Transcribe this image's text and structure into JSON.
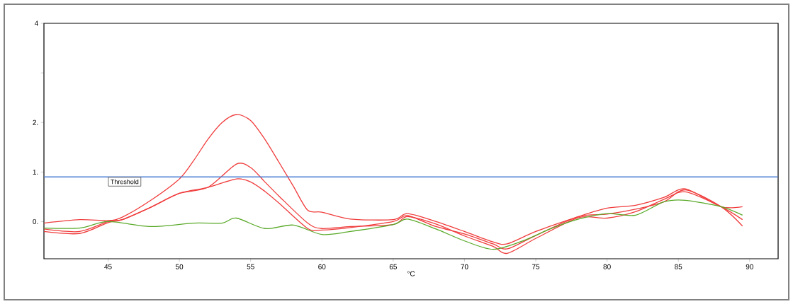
{
  "chart_data": {
    "type": "line",
    "xlabel": "°C",
    "xlim": [
      40.5,
      92
    ],
    "ylim": [
      -0.75,
      4
    ],
    "xticks": [
      45,
      50,
      55,
      60,
      65,
      70,
      75,
      80,
      85,
      90
    ],
    "yticks": [
      {
        "value": 0,
        "label": "0."
      },
      {
        "value": 1,
        "label": "1."
      },
      {
        "value": 2,
        "label": "2."
      },
      {
        "value": 3,
        "label": null
      },
      {
        "value": 4,
        "label": "4"
      }
    ],
    "grid": false,
    "marker": "none",
    "line_style": "solid",
    "ref_lines": [
      {
        "axis": "y",
        "value": 0.9,
        "label": "Threshold",
        "color": "#4a7fd4"
      }
    ],
    "series": [
      {
        "color": "#f03c3c",
        "x": [
          40.5,
          43,
          45,
          46,
          48,
          50,
          51,
          52,
          53,
          54,
          55,
          56,
          57,
          58,
          59,
          60,
          62,
          65,
          66,
          68,
          70,
          72,
          73,
          75,
          78,
          80,
          82,
          84,
          85.5,
          88,
          89.5
        ],
        "values": [
          -0.03,
          0.04,
          0.02,
          0.09,
          0.43,
          0.86,
          1.23,
          1.66,
          2.0,
          2.16,
          2.04,
          1.66,
          1.19,
          0.71,
          0.23,
          0.19,
          0.05,
          0.04,
          0.16,
          0.0,
          -0.2,
          -0.41,
          -0.45,
          -0.2,
          0.1,
          0.27,
          0.33,
          0.49,
          0.66,
          0.3,
          0.3
        ]
      },
      {
        "color": "#f03c3c",
        "x": [
          40.5,
          43,
          45,
          46,
          48,
          50,
          52,
          54,
          55,
          56,
          57,
          59,
          60,
          62,
          65,
          66,
          68,
          70,
          72,
          73,
          75,
          78,
          80,
          82,
          84,
          85.5,
          88,
          89.5
        ],
        "values": [
          -0.2,
          -0.24,
          -0.02,
          0.04,
          0.29,
          0.57,
          0.69,
          1.16,
          1.09,
          0.8,
          0.51,
          -0.03,
          -0.14,
          -0.1,
          -0.06,
          0.1,
          -0.05,
          -0.29,
          -0.5,
          -0.64,
          -0.34,
          0.08,
          0.07,
          0.2,
          0.45,
          0.6,
          0.3,
          0.04
        ]
      },
      {
        "color": "#f03c3c",
        "x": [
          40.5,
          43,
          45,
          46,
          48,
          50,
          52,
          54,
          55,
          56,
          57,
          59,
          60,
          62,
          65,
          66,
          68,
          70,
          72,
          73,
          75,
          78,
          80,
          82,
          84,
          85.5,
          88,
          89.5
        ],
        "values": [
          -0.15,
          -0.2,
          0.0,
          0.04,
          0.29,
          0.57,
          0.69,
          0.86,
          0.8,
          0.61,
          0.37,
          -0.14,
          -0.17,
          -0.12,
          0.0,
          0.12,
          -0.1,
          -0.25,
          -0.45,
          -0.55,
          -0.28,
          0.1,
          0.15,
          0.25,
          0.4,
          0.64,
          0.3,
          -0.09
        ]
      },
      {
        "color": "#5aaa2a",
        "x": [
          40.5,
          43,
          45,
          48,
          51,
          53,
          54,
          56,
          58,
          60,
          62,
          65,
          66,
          68,
          70,
          72,
          74,
          76,
          78,
          80,
          82,
          84,
          85.5,
          88,
          89.5
        ],
        "values": [
          -0.13,
          -0.13,
          0.0,
          -0.1,
          -0.03,
          -0.03,
          0.07,
          -0.14,
          -0.07,
          -0.26,
          -0.2,
          -0.06,
          0.05,
          -0.15,
          -0.39,
          -0.56,
          -0.4,
          -0.15,
          0.05,
          0.16,
          0.13,
          0.4,
          0.43,
          0.3,
          0.13
        ]
      }
    ]
  }
}
